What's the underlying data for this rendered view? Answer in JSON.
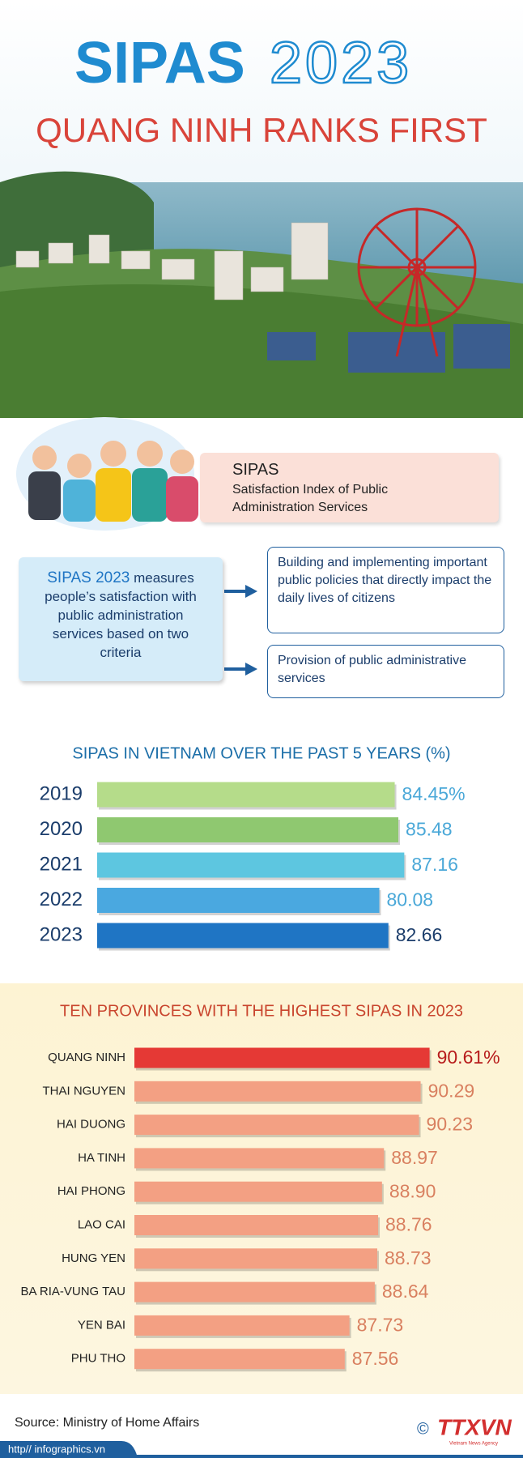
{
  "header": {
    "title_main": "SIPAS",
    "title_year": "2023",
    "subtitle": "QUANG NINH RANKS FIRST"
  },
  "definition": {
    "term": "SIPAS",
    "meaning": "Satisfaction Index of Public Administration Services"
  },
  "criteria": {
    "intro_lead": "SIPAS 2023",
    "intro": "measures people’s satisfaction with public administration services based on two criteria",
    "items": [
      "Building and implementing important public policies that directly impact the daily lives of citizens",
      "Provision of public administrative services"
    ]
  },
  "chart_data": [
    {
      "type": "bar",
      "title": "SIPAS IN VIETNAM OVER THE PAST 5 YEARS (%)",
      "categories": [
        "2019",
        "2020",
        "2021",
        "2022",
        "2023"
      ],
      "values": [
        84.45,
        85.48,
        87.16,
        80.08,
        82.66
      ],
      "value_labels": [
        "84.45%",
        "85.48",
        "87.16",
        "80.08",
        "82.66"
      ],
      "colors": [
        "#b5dc8a",
        "#8fc870",
        "#5dc6e0",
        "#4aa8e0",
        "#1f75c4"
      ],
      "xlim": [
        0,
        88
      ]
    },
    {
      "type": "bar",
      "title": "TEN PROVINCES WITH THE HIGHEST SIPAS IN 2023",
      "categories": [
        "QUANG NINH",
        "THAI NGUYEN",
        "HAI DUONG",
        "HA TINH",
        "HAI PHONG",
        "LAO CAI",
        "HUNG YEN",
        "BA RIA-VUNG TAU",
        "YEN BAI",
        "PHU THO"
      ],
      "values": [
        90.61,
        90.29,
        90.23,
        88.97,
        88.9,
        88.76,
        88.73,
        88.64,
        87.73,
        87.56
      ],
      "value_labels": [
        "90.61%",
        "90.29",
        "90.23",
        "88.97",
        "88.90",
        "88.76",
        "88.73",
        "88.64",
        "87.73",
        "87.56"
      ],
      "colors": [
        "#e53935",
        "#f3a083",
        "#f3a083",
        "#f3a083",
        "#f3a083",
        "#f3a083",
        "#f3a083",
        "#f3a083",
        "#f3a083",
        "#f3a083"
      ],
      "xlim": [
        80,
        91
      ]
    }
  ],
  "footer": {
    "source": "Source: Ministry of Home Affairs",
    "url": "http// infographics.vn",
    "logo": "TTXVN",
    "logo_sub": "Vietnam News Agency",
    "copyright": "©"
  }
}
